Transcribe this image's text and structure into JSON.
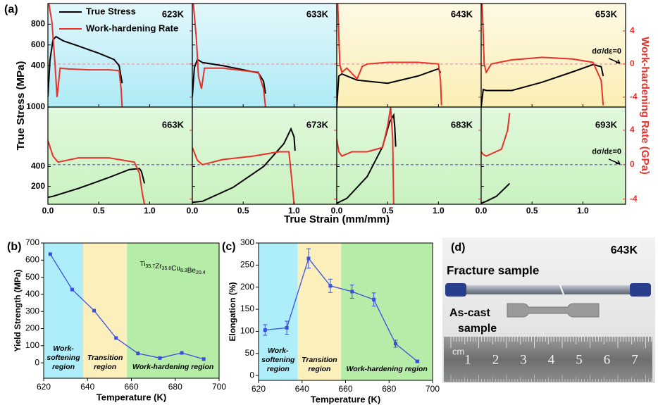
{
  "chart_data": [
    {
      "type": "line",
      "panel_label": "(a)",
      "xlabel": "True Strain (mm/mm)",
      "ylabel": "True Stress (MPa)",
      "y2label": "Work-hardening Rate (GPa)",
      "xlim": [
        0,
        1.42
      ],
      "xticks": [
        {
          "value": 0,
          "label": "0.0"
        },
        {
          "value": 0.5,
          "label": "0.5"
        },
        {
          "value": 1,
          "label": "1.0"
        }
      ],
      "series": [
        {
          "name": "True Stress",
          "color": "#000000"
        },
        {
          "name": "Work-hardening Rate",
          "color": "#e8312a",
          "axis": "y2"
        }
      ],
      "rows": [
        {
          "ylim": [
            0,
            1000
          ],
          "yticks": [
            400,
            600,
            800
          ],
          "y2lim": [
            -5.2,
            7.3
          ],
          "y2ticks": [
            -4,
            0,
            4
          ],
          "zero_line_color": "#e89aa8"
        },
        {
          "ylim": [
            20,
            1000
          ],
          "yticks": [
            200,
            400,
            1000
          ],
          "y2lim": [
            -4.6,
            6.7
          ],
          "y2ticks": [
            -4,
            0,
            4
          ],
          "zero_line_color": "#6a4fe0"
        }
      ],
      "panels": [
        {
          "label": "623K",
          "row": 0,
          "background": "#aeeaf5",
          "data": [
            {
              "x": [
                0,
                0.02,
                0.05,
                0.08,
                0.15,
                0.3,
                0.5,
                0.65,
                0.7,
                0.73
              ],
              "values": [
                100,
                450,
                650,
                680,
                640,
                590,
                520,
                460,
                400,
                230
              ]
            },
            {
              "x": [
                0.01,
                0.04,
                0.07,
                0.09,
                0.12,
                0.2,
                0.4,
                0.6,
                0.7,
                0.72,
                0.73
              ],
              "values": [
                7.3,
                5,
                0,
                -4,
                -0.5,
                -0.6,
                -0.7,
                -0.7,
                -0.8,
                -3,
                -5.2
              ]
            }
          ]
        },
        {
          "label": "633K",
          "row": 0,
          "background": "#aeeaf5",
          "data": [
            {
              "x": [
                0,
                0.02,
                0.05,
                0.1,
                0.3,
                0.5,
                0.65,
                0.7,
                0.72
              ],
              "values": [
                100,
                380,
                460,
                430,
                400,
                360,
                330,
                250,
                130
              ]
            },
            {
              "x": [
                0.01,
                0.04,
                0.06,
                0.09,
                0.12,
                0.3,
                0.5,
                0.65,
                0.7,
                0.72
              ],
              "values": [
                7.3,
                3,
                -1.5,
                -3,
                -0.5,
                -0.5,
                -0.8,
                -1,
                -3,
                -5.2
              ]
            }
          ]
        },
        {
          "label": "643K",
          "row": 0,
          "background": "#fbeeb4",
          "data": [
            {
              "x": [
                0,
                0.02,
                0.05,
                0.2,
                0.5,
                0.8,
                1.0,
                1.02
              ],
              "values": [
                0,
                300,
                320,
                260,
                230,
                300,
                370,
                330
              ]
            },
            {
              "x": [
                0.01,
                0.03,
                0.05,
                0.1,
                0.2,
                0.25,
                0.3,
                0.5,
                0.8,
                1.0,
                1.02,
                1.03
              ],
              "values": [
                7.3,
                0,
                -1,
                -0.5,
                -1.8,
                -0.3,
                0,
                0.2,
                0.2,
                0,
                -2,
                -5
              ]
            }
          ]
        },
        {
          "label": "653K",
          "row": 0,
          "background": "#fbeeb4",
          "annotation": "dσ/dε=0",
          "data": [
            {
              "x": [
                0,
                0.02,
                0.05,
                0.3,
                0.6,
                0.9,
                1.1,
                1.18,
                1.2
              ],
              "values": [
                0,
                170,
                160,
                160,
                240,
                340,
                410,
                390,
                300
              ]
            },
            {
              "x": [
                0.01,
                0.03,
                0.05,
                0.1,
                0.3,
                0.6,
                0.9,
                1.1,
                1.18,
                1.2
              ],
              "values": [
                7.3,
                0,
                -1,
                0,
                0.5,
                0.8,
                0.6,
                0.2,
                -2,
                -5
              ]
            }
          ]
        },
        {
          "label": "663K",
          "row": 1,
          "background": "#c9f2c0",
          "data": [
            {
              "x": [
                0,
                0.05,
                0.3,
                0.6,
                0.8,
                0.9,
                0.92,
                0.95
              ],
              "values": [
                90,
                100,
                180,
                290,
                370,
                380,
                350,
                230
              ]
            },
            {
              "x": [
                0,
                0.05,
                0.1,
                0.3,
                0.6,
                0.85,
                0.9,
                0.93,
                0.95
              ],
              "values": [
                2.8,
                1,
                0.3,
                0.8,
                0.8,
                0.3,
                -1,
                -3.5,
                -4.6
              ]
            }
          ]
        },
        {
          "label": "673K",
          "row": 1,
          "background": "#c9f2c0",
          "data": [
            {
              "x": [
                0,
                0.1,
                0.4,
                0.7,
                0.9,
                0.97,
                1.0,
                1.01
              ],
              "values": [
                40,
                50,
                190,
                400,
                630,
                780,
                700,
                560
              ]
            },
            {
              "x": [
                0,
                0.05,
                0.1,
                0.3,
                0.6,
                0.85,
                0.95,
                0.98,
                1.0
              ],
              "values": [
                2,
                0.5,
                0,
                0.6,
                1,
                1.5,
                1.5,
                -2,
                -4.6
              ]
            }
          ]
        },
        {
          "label": "683K",
          "row": 1,
          "background": "#c9f2c0",
          "data": [
            {
              "x": [
                0,
                0.1,
                0.3,
                0.45,
                0.52,
                0.56,
                0.57,
                0.58
              ],
              "values": [
                30,
                80,
                300,
                600,
                850,
                920,
                800,
                600
              ]
            },
            {
              "x": [
                0,
                0.02,
                0.05,
                0.15,
                0.3,
                0.45,
                0.5,
                0.53,
                0.55,
                0.56
              ],
              "values": [
                3,
                1.5,
                1,
                1.5,
                1.5,
                2,
                4.5,
                6.7,
                3,
                -4.6
              ]
            }
          ]
        },
        {
          "label": "693K",
          "row": 1,
          "background": "#c9f2c0",
          "annotation": "dσ/dε=0",
          "data": [
            {
              "x": [
                0,
                0.05,
                0.15,
                0.25,
                0.28
              ],
              "values": [
                30,
                50,
                100,
                200,
                230
              ]
            },
            {
              "x": [
                0,
                0.02,
                0.05,
                0.2,
                0.26,
                0.28
              ],
              "values": [
                1.5,
                1.2,
                1,
                1.8,
                4,
                6
              ]
            }
          ]
        }
      ]
    },
    {
      "type": "line",
      "panel_label": "(b)",
      "xlabel": "Temperature (K)",
      "ylabel": "Yield Strength (MPa)",
      "color": "#3a4fe0",
      "x": [
        623,
        633,
        643,
        653,
        663,
        673,
        683,
        693
      ],
      "values": [
        635,
        428,
        305,
        145,
        55,
        28,
        58,
        22
      ],
      "xlim": [
        620,
        700
      ],
      "xticks": [
        620,
        640,
        660,
        680,
        700
      ],
      "ylim": [
        -90,
        700
      ],
      "yticks": [
        0,
        100,
        200,
        300,
        400,
        500,
        600,
        700
      ],
      "composition": [
        {
          "el": "Ti",
          "sub": "35.7"
        },
        {
          "el": "Zr",
          "sub": "35.6"
        },
        {
          "el": "Cu",
          "sub": "8.3"
        },
        {
          "el": "Be",
          "sub": "20.4"
        }
      ],
      "regions": [
        {
          "label": [
            "Work-",
            "softening",
            "region"
          ],
          "xlim": [
            620,
            638
          ],
          "color": "#aeeefa"
        },
        {
          "label": [
            "Transition",
            "region"
          ],
          "xlim": [
            638,
            658
          ],
          "color": "#fbf0bc"
        },
        {
          "label": [
            "Work-hardening region"
          ],
          "xlim": [
            658,
            700
          ],
          "color": "#b4eca8"
        }
      ]
    },
    {
      "type": "line",
      "panel_label": "(c)",
      "xlabel": "Temperature (K)",
      "ylabel": "Elongation (%)",
      "color": "#3a4fe0",
      "x": [
        623,
        633,
        643,
        653,
        663,
        673,
        683,
        693
      ],
      "values": [
        103,
        108,
        265,
        203,
        190,
        172,
        72,
        32
      ],
      "errors": [
        12,
        15,
        22,
        15,
        15,
        15,
        8,
        2
      ],
      "xlim": [
        620,
        700
      ],
      "xticks": [
        620,
        640,
        660,
        680,
        700
      ],
      "ylim": [
        -11,
        300
      ],
      "yticks": [
        0,
        50,
        100,
        150,
        200,
        250,
        300
      ],
      "regions": [
        {
          "label": [
            "Work-",
            "softening",
            "region"
          ],
          "xlim": [
            620,
            638
          ],
          "color": "#aeeefa"
        },
        {
          "label": [
            "Transition",
            "region"
          ],
          "xlim": [
            638,
            658
          ],
          "color": "#fbf0bc"
        },
        {
          "label": [
            "Work-hardening region"
          ],
          "xlim": [
            658,
            700
          ],
          "color": "#b4eca8"
        }
      ]
    }
  ],
  "photo": {
    "panel_label": "(d)",
    "temperature": "643K",
    "fracture_label": "Fracture sample",
    "ascast_label": [
      "As-cast",
      "sample"
    ],
    "ruler_unit": "cm",
    "ruler_labels": [
      "1",
      "2",
      "3",
      "4",
      "5",
      "6",
      "7"
    ]
  }
}
